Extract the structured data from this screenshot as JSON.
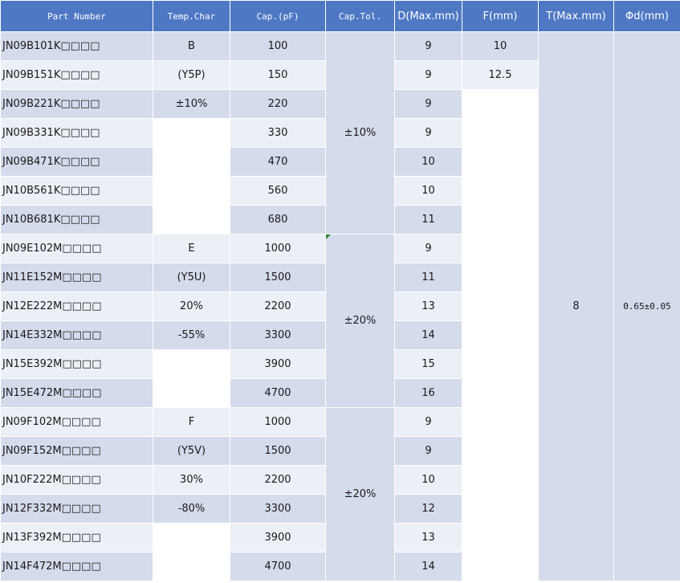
{
  "headers": {
    "part_number": "Part Number",
    "temp_char": "Temp.Char",
    "cap_pf": "Cap.(pF)",
    "cap_tol": "Cap.Tol.",
    "d_max": "D(Max.mm)",
    "f_mm": "F(mm)",
    "t_max": "T(Max.mm)",
    "phi_d": "Φd(mm)"
  },
  "rows": [
    {
      "part": "JN09B101K□□□□",
      "temp": "B",
      "cap": "100",
      "d": "9",
      "f": "10"
    },
    {
      "part": "JN09B151K□□□□",
      "temp": "(Y5P)",
      "cap": "150",
      "d": "9",
      "f": "12.5"
    },
    {
      "part": "JN09B221K□□□□",
      "temp": "±10%",
      "cap": "220",
      "d": "9",
      "f": ""
    },
    {
      "part": "JN09B331K□□□□",
      "temp": "",
      "cap": "330",
      "d": "9",
      "f": ""
    },
    {
      "part": "JN09B471K□□□□",
      "temp": "",
      "cap": "470",
      "d": "10",
      "f": ""
    },
    {
      "part": "JN10B561K□□□□",
      "temp": "",
      "cap": "560",
      "d": "10",
      "f": ""
    },
    {
      "part": "JN10B681K□□□□",
      "temp": "",
      "cap": "680",
      "d": "11",
      "f": ""
    },
    {
      "part": "JN09E102M□□□□",
      "temp": "E",
      "cap": "1000",
      "d": "9",
      "f": ""
    },
    {
      "part": "JN11E152M□□□□",
      "temp": "(Y5U)",
      "cap": "1500",
      "d": "11",
      "f": ""
    },
    {
      "part": "JN12E222M□□□□",
      "temp": "20%",
      "cap": "2200",
      "d": "13",
      "f": ""
    },
    {
      "part": "JN14E332M□□□□",
      "temp": "-55%",
      "cap": "3300",
      "d": "14",
      "f": ""
    },
    {
      "part": "JN15E392M□□□□",
      "temp": "",
      "cap": "3900",
      "d": "15",
      "f": ""
    },
    {
      "part": "JN15E472M□□□□",
      "temp": "",
      "cap": "4700",
      "d": "16",
      "f": ""
    },
    {
      "part": "JN09F102M□□□□",
      "temp": "F",
      "cap": "1000",
      "d": "9",
      "f": ""
    },
    {
      "part": "JN09F152M□□□□",
      "temp": "(Y5V)",
      "cap": "1500",
      "d": "9",
      "f": ""
    },
    {
      "part": "JN10F222M□□□□",
      "temp": "30%",
      "cap": "2200",
      "d": "10",
      "f": ""
    },
    {
      "part": "JN12F332M□□□□",
      "temp": "-80%",
      "cap": "3300",
      "d": "12",
      "f": ""
    },
    {
      "part": "JN13F392M□□□□",
      "temp": "",
      "cap": "3900",
      "d": "13",
      "f": ""
    },
    {
      "part": "JN14F472M□□□□",
      "temp": "",
      "cap": "4700",
      "d": "14",
      "f": ""
    }
  ],
  "tol_groups": [
    "±10%",
    "±20%",
    "±20%"
  ],
  "t_max_value": "8",
  "phi_d_value": "0.65±0.05",
  "colors": {
    "header_bg": "#4f78c4",
    "row_odd": "#d4dbea",
    "row_even": "#ebeff6",
    "blank": "#ffffff"
  }
}
